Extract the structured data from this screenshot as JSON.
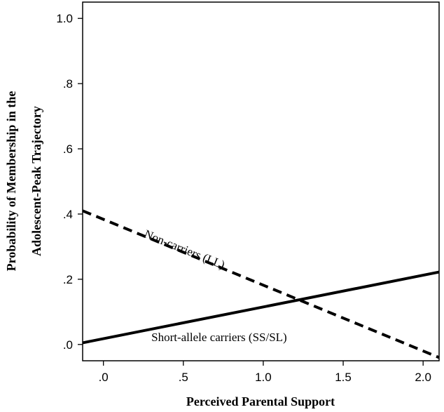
{
  "chart_data": {
    "type": "line",
    "title": "",
    "xlabel": "Perceived Parental Support",
    "ylabel": [
      "Probability of Membership in the",
      "Adolescent-Peak Trajectory"
    ],
    "xlim": [
      -0.13,
      2.1
    ],
    "ylim": [
      -0.05,
      1.05
    ],
    "x_ticks": [
      0,
      0.5,
      1.0,
      1.5,
      2.0
    ],
    "x_tick_labels": [
      ".0",
      ".5",
      "1.0",
      "1.5",
      "2.0"
    ],
    "y_ticks": [
      0,
      0.2,
      0.4,
      0.6,
      0.8,
      1.0
    ],
    "y_tick_labels": [
      ".0",
      ".2",
      ".4",
      ".6",
      ".8",
      "1.0"
    ],
    "grid": false,
    "legend": "none",
    "series": [
      {
        "name": "Non-carriers (LL)",
        "style": "dashed",
        "color": "#000000",
        "x": [
          -0.13,
          2.1
        ],
        "y": [
          0.41,
          -0.04
        ]
      },
      {
        "name": "Short-allele carriers (SS/SL)",
        "style": "solid",
        "color": "#000000",
        "x": [
          -0.13,
          2.1
        ],
        "y": [
          0.005,
          0.222
        ]
      }
    ],
    "annotations": [
      {
        "text": "Non-carriers (LL)",
        "series": 0
      },
      {
        "text": "Short-allele carriers (SS/SL)",
        "series": 1
      }
    ]
  }
}
